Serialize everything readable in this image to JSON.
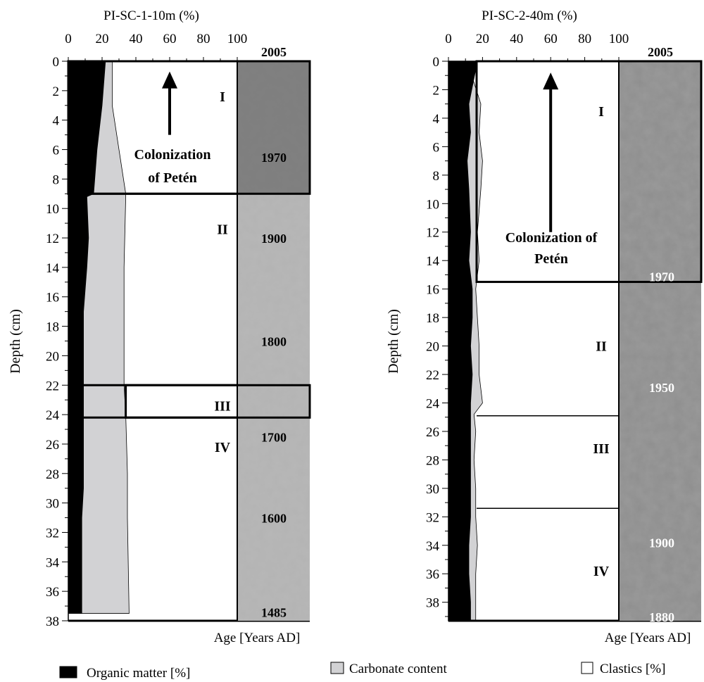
{
  "chart_data": [
    {
      "type": "area",
      "title": "PI-SC-1-10m (%)",
      "xlabel": "",
      "ylabel": "Depth (cm)",
      "xlim": [
        0,
        100
      ],
      "ylim": [
        38,
        0
      ],
      "x_ticks": [
        "0",
        "20",
        "40",
        "60",
        "80",
        "100"
      ],
      "y_ticks": [
        "0",
        "2",
        "4",
        "6",
        "8",
        "10",
        "12",
        "14",
        "16",
        "18",
        "20",
        "22",
        "24",
        "26",
        "28",
        "30",
        "32",
        "34",
        "36",
        "38"
      ],
      "series": [
        {
          "name": "Organic matter [%]",
          "color": "#000000",
          "points": [
            [
              0,
              22
            ],
            [
              3,
              20
            ],
            [
              6,
              17
            ],
            [
              9,
              15
            ],
            [
              9.2,
              11
            ],
            [
              12,
              12
            ],
            [
              14,
              11
            ],
            [
              17,
              9
            ],
            [
              22,
              9
            ],
            [
              26,
              9
            ],
            [
              29,
              9
            ],
            [
              31,
              8
            ],
            [
              37.5,
              8
            ]
          ]
        },
        {
          "name": "Carbonate content",
          "color": "#d2d2d4",
          "points": [
            [
              0,
              26
            ],
            [
              3,
              26
            ],
            [
              6,
              30
            ],
            [
              9,
              34
            ],
            [
              9.2,
              34
            ],
            [
              14,
              33
            ],
            [
              22,
              33
            ],
            [
              24,
              34
            ],
            [
              28,
              35
            ],
            [
              31,
              35
            ],
            [
              37.5,
              36
            ]
          ]
        }
      ],
      "background_series": {
        "name": "Clastics [%]",
        "color": "#ffffff"
      },
      "units": [
        {
          "label": "I",
          "top": 0,
          "bottom": 9
        },
        {
          "label": "II",
          "top": 9,
          "bottom": 22
        },
        {
          "label": "III",
          "top": 22,
          "bottom": 24.2
        },
        {
          "label": "IV",
          "top": 24.2,
          "bottom": 38
        }
      ],
      "annotation": {
        "text_lines": [
          "Colonization",
          "of Petén"
        ],
        "arrow_x": 60,
        "arrow_from": 5,
        "arrow_to": 0.7
      },
      "age_axis": {
        "label": "Age [Years AD]",
        "top_label": "2005",
        "ages": [
          {
            "text": "1970",
            "depth": 6.5,
            "color": "#000000"
          },
          {
            "text": "1900",
            "depth": 12,
            "color": "#000000"
          },
          {
            "text": "1800",
            "depth": 19,
            "color": "#000000"
          },
          {
            "text": "1700",
            "depth": 25.5,
            "color": "#000000"
          },
          {
            "text": "1600",
            "depth": 31,
            "color": "#000000"
          },
          {
            "text": "1485",
            "depth": 37.4,
            "color": "#000000"
          }
        ]
      }
    },
    {
      "type": "area",
      "title": "PI-SC-2-40m (%)",
      "xlabel": "",
      "ylabel": "Depth (cm)",
      "xlim": [
        0,
        100
      ],
      "ylim": [
        39.3,
        0
      ],
      "x_ticks": [
        "0",
        "20",
        "40",
        "60",
        "80",
        "100"
      ],
      "y_ticks": [
        "0",
        "2",
        "4",
        "6",
        "8",
        "10",
        "12",
        "14",
        "16",
        "18",
        "20",
        "22",
        "24",
        "26",
        "28",
        "30",
        "32",
        "34",
        "36",
        "38"
      ],
      "series": [
        {
          "name": "Organic matter [%]",
          "color": "#000000",
          "points": [
            [
              0,
              17
            ],
            [
              3,
              12
            ],
            [
              5,
              13
            ],
            [
              7,
              11
            ],
            [
              9,
              12
            ],
            [
              12,
              13
            ],
            [
              14,
              12
            ],
            [
              16,
              14
            ],
            [
              18,
              14
            ],
            [
              20,
              13
            ],
            [
              22,
              14
            ],
            [
              24,
              13
            ],
            [
              24.8,
              13
            ],
            [
              26,
              13
            ],
            [
              28,
              13
            ],
            [
              30,
              13
            ],
            [
              32,
              13
            ],
            [
              34,
              12
            ],
            [
              36,
              12
            ],
            [
              38,
              13
            ],
            [
              39.3,
              13
            ]
          ]
        },
        {
          "name": "Carbonate content",
          "color": "#d2d2d4",
          "points": [
            [
              0,
              11
            ],
            [
              3,
              19
            ],
            [
              5,
              18
            ],
            [
              7,
              20
            ],
            [
              9,
              19
            ],
            [
              12,
              17
            ],
            [
              14,
              18
            ],
            [
              16,
              16
            ],
            [
              18,
              17
            ],
            [
              20,
              18
            ],
            [
              22,
              18
            ],
            [
              24,
              20
            ],
            [
              24.8,
              15
            ],
            [
              26,
              16
            ],
            [
              28,
              15
            ],
            [
              30,
              16
            ],
            [
              32,
              16
            ],
            [
              34,
              17
            ],
            [
              36,
              16
            ],
            [
              38,
              16
            ],
            [
              39.3,
              16
            ]
          ]
        }
      ],
      "background_series": {
        "name": "Clastics [%]",
        "color": "#ffffff"
      },
      "units": [
        {
          "label": "I",
          "top": 0,
          "bottom": 15.5
        },
        {
          "label": "II",
          "top": 15.5,
          "bottom": 24.9
        },
        {
          "label": "III",
          "top": 24.9,
          "bottom": 31.4
        },
        {
          "label": "IV",
          "top": 31.4,
          "bottom": 39.3
        }
      ],
      "annotation": {
        "text_lines": [
          "Colonization of",
          "Petén"
        ],
        "arrow_x": 60,
        "arrow_from": 12,
        "arrow_to": 0.8
      },
      "age_axis": {
        "label": "Age [Years AD]",
        "top_label": "2005",
        "ages": [
          {
            "text": "1970",
            "depth": 15.1,
            "color": "#ffffff"
          },
          {
            "text": "1950",
            "depth": 22.9,
            "color": "#ffffff"
          },
          {
            "text": "1900",
            "depth": 33.8,
            "color": "#ffffff"
          },
          {
            "text": "1880",
            "depth": 39.0,
            "color": "#ffffff"
          }
        ]
      }
    }
  ],
  "legend": [
    {
      "label": "Organic matter [%]",
      "swatch": "#000000"
    },
    {
      "label": "Carbonate content",
      "swatch": "#d2d2d4"
    },
    {
      "label": "Clastics [%]",
      "swatch": "#ffffff"
    }
  ]
}
